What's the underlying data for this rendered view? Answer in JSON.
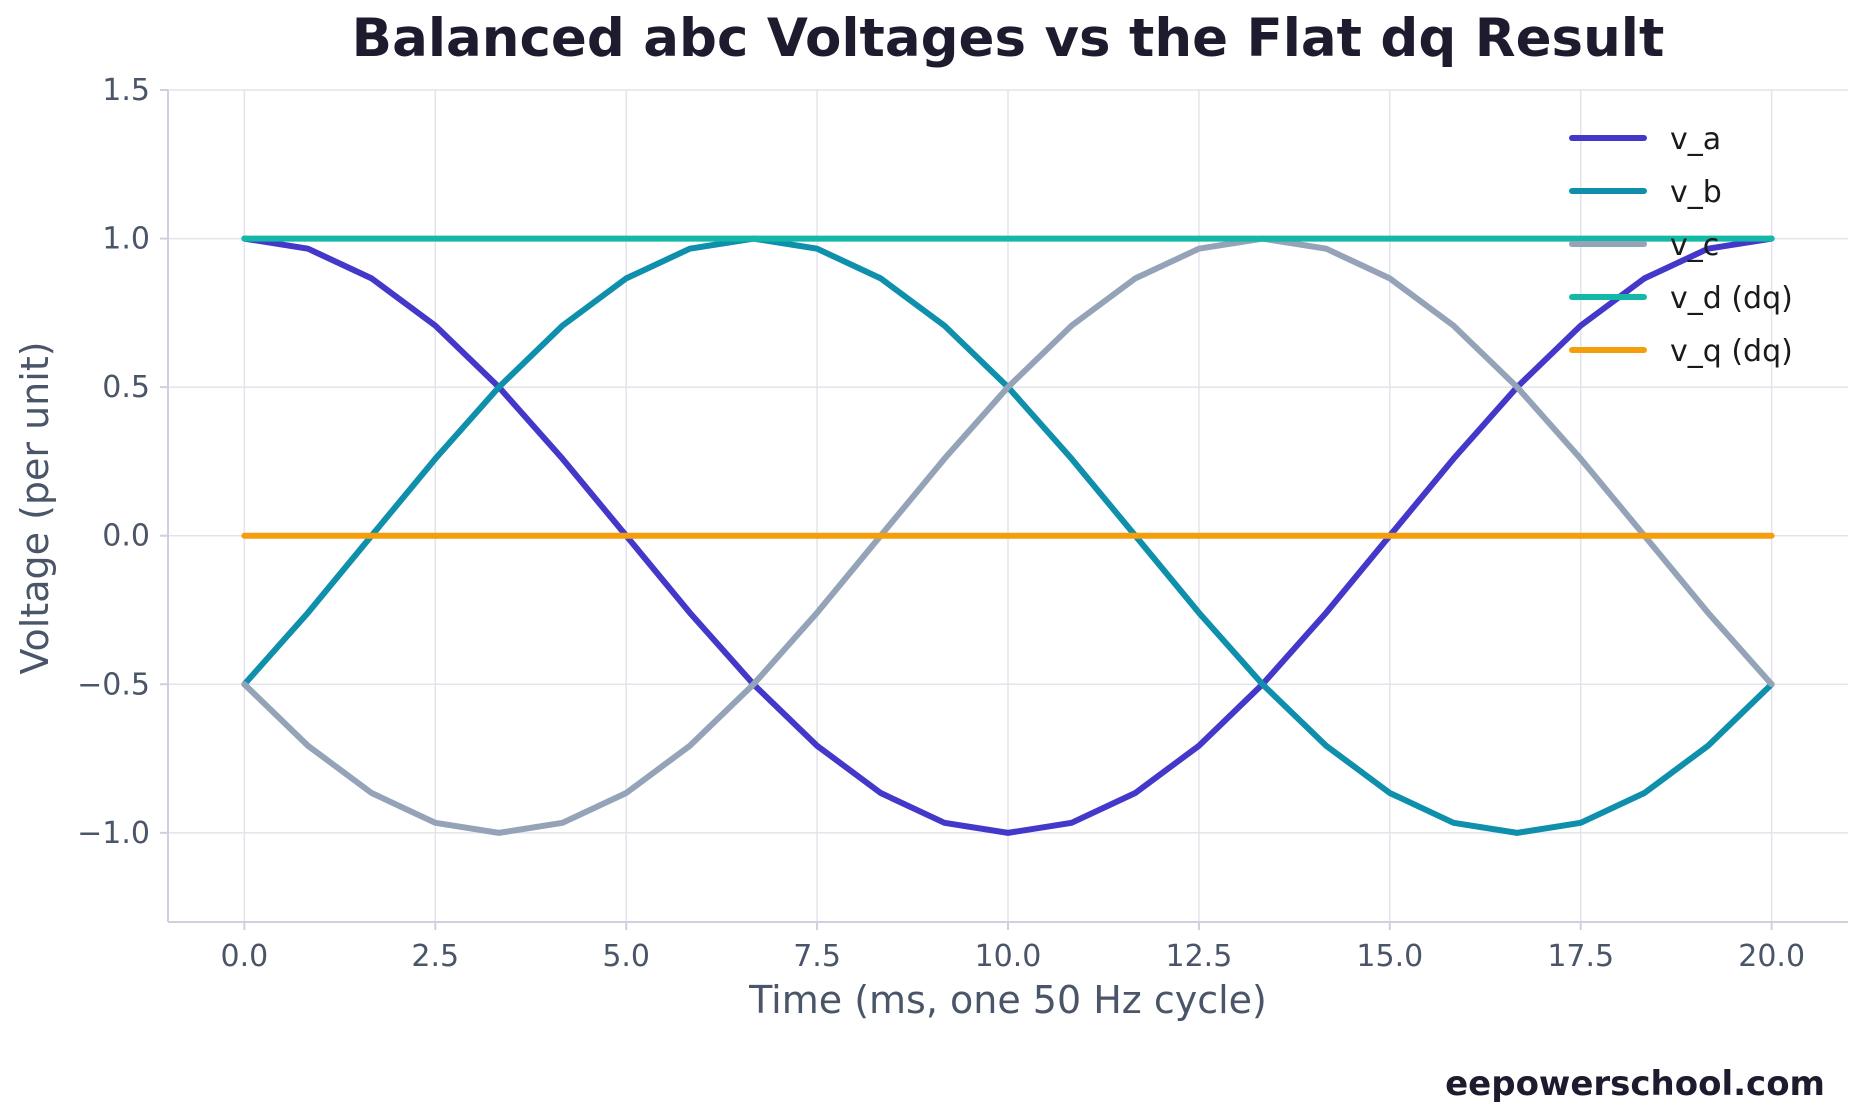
{
  "chart_data": {
    "type": "line",
    "title": "Balanced abc Voltages vs the Flat dq Result",
    "xlabel": "Time (ms, one 50 Hz cycle)",
    "ylabel": "Voltage (per unit)",
    "xlim": [
      -1.0,
      21.0
    ],
    "ylim": [
      -1.3,
      1.5
    ],
    "xticks": [
      0.0,
      2.5,
      5.0,
      7.5,
      10.0,
      12.5,
      15.0,
      17.5,
      20.0
    ],
    "xtick_labels": [
      "0.0",
      "2.5",
      "5.0",
      "7.5",
      "10.0",
      "12.5",
      "15.0",
      "17.5",
      "20.0"
    ],
    "yticks": [
      -1.0,
      -0.5,
      0.0,
      0.5,
      1.0,
      1.5
    ],
    "ytick_labels": [
      "−1.0",
      "−0.5",
      "0.0",
      "0.5",
      "1.0",
      "1.5"
    ],
    "grid": true,
    "legend_position": "top-right",
    "x": [
      0,
      0.8333,
      1.6667,
      2.5,
      3.3333,
      4.1667,
      5.0,
      5.8333,
      6.6667,
      7.5,
      8.3333,
      9.1667,
      10.0,
      10.8333,
      11.6667,
      12.5,
      13.3333,
      14.1667,
      15.0,
      15.8333,
      16.6667,
      17.5,
      18.3333,
      19.1667,
      20.0
    ],
    "series": [
      {
        "name": "v_a",
        "color": "#4338ca",
        "values": [
          1.0,
          0.966,
          0.866,
          0.707,
          0.5,
          0.259,
          0.0,
          -0.259,
          -0.5,
          -0.707,
          -0.866,
          -0.966,
          -1.0,
          -0.966,
          -0.866,
          -0.707,
          -0.5,
          -0.259,
          0.0,
          0.259,
          0.5,
          0.707,
          0.866,
          0.966,
          1.0
        ]
      },
      {
        "name": "v_b",
        "color": "#0e8fab",
        "values": [
          -0.5,
          -0.259,
          0.0,
          0.259,
          0.5,
          0.707,
          0.866,
          0.966,
          1.0,
          0.966,
          0.866,
          0.707,
          0.5,
          0.259,
          0.0,
          -0.259,
          -0.5,
          -0.707,
          -0.866,
          -0.966,
          -1.0,
          -0.966,
          -0.866,
          -0.707,
          -0.5
        ]
      },
      {
        "name": "v_c",
        "color": "#94a3b8",
        "values": [
          -0.5,
          -0.707,
          -0.866,
          -0.966,
          -1.0,
          -0.966,
          -0.866,
          -0.707,
          -0.5,
          -0.259,
          0.0,
          0.259,
          0.5,
          0.707,
          0.866,
          0.966,
          1.0,
          0.966,
          0.866,
          0.707,
          0.5,
          0.259,
          0.0,
          -0.259,
          -0.5
        ]
      },
      {
        "name": "v_d (dq)",
        "color": "#14b8a6",
        "values": [
          1.0,
          1.0,
          1.0,
          1.0,
          1.0,
          1.0,
          1.0,
          1.0,
          1.0,
          1.0,
          1.0,
          1.0,
          1.0,
          1.0,
          1.0,
          1.0,
          1.0,
          1.0,
          1.0,
          1.0,
          1.0,
          1.0,
          1.0,
          1.0,
          1.0
        ]
      },
      {
        "name": "v_q (dq)",
        "color": "#f59e0b",
        "values": [
          0.0,
          0.0,
          0.0,
          0.0,
          0.0,
          0.0,
          0.0,
          0.0,
          0.0,
          0.0,
          0.0,
          0.0,
          0.0,
          0.0,
          0.0,
          0.0,
          0.0,
          0.0,
          0.0,
          0.0,
          0.0,
          0.0,
          0.0,
          0.0,
          0.0
        ]
      }
    ]
  },
  "watermark": "eepowerschool.com"
}
